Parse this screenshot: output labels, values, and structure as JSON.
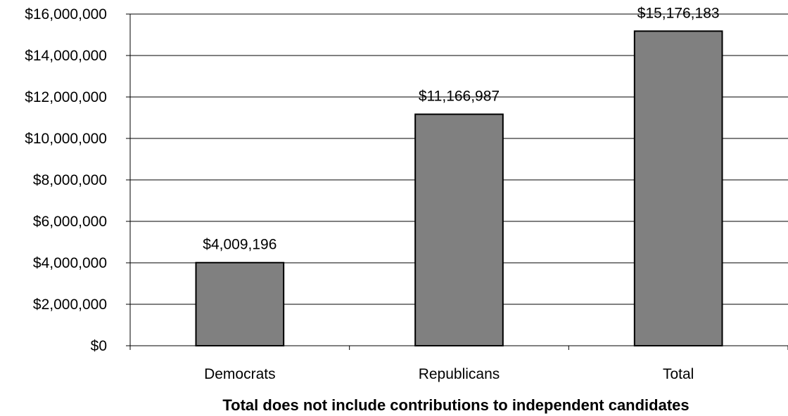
{
  "chart_data": {
    "type": "bar",
    "categories": [
      "Democrats",
      "Republicans",
      "Total"
    ],
    "values": [
      4009196,
      11166987,
      15176183
    ],
    "value_labels": [
      "$4,009,196",
      "$11,166,987",
      "$15,176,183"
    ],
    "xlabel": "Total does not include contributions to independent  candidates",
    "ylabel": "",
    "ylim": [
      0,
      16000000
    ],
    "y_ticks": [
      0,
      2000000,
      4000000,
      6000000,
      8000000,
      10000000,
      12000000,
      14000000,
      16000000
    ],
    "y_tick_labels": [
      "$0",
      "$2,000,000",
      "$4,000,000",
      "$6,000,000",
      "$8,000,000",
      "$10,000,000",
      "$12,000,000",
      "$14,000,000",
      "$16,000,000"
    ],
    "grid": true,
    "legend": "none",
    "colors": {
      "bar_fill": "#808080",
      "bar_stroke": "#000000",
      "grid": "#000000"
    }
  }
}
